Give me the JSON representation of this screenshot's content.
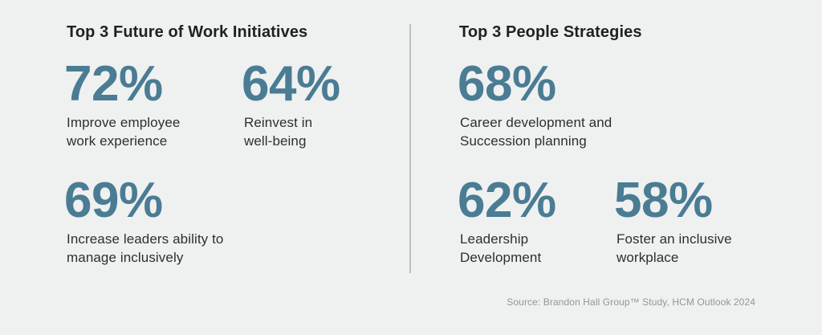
{
  "theme": {
    "background": "#eff0f0",
    "accent": "#4a7c93",
    "heading_color": "#1e2122",
    "label_color": "#2c2f30",
    "divider_color": "#b7c0c4",
    "source_color": "#8f989c"
  },
  "left_section": {
    "title": "Top 3 Future of Work Initiatives",
    "stats": [
      {
        "value": "72%",
        "lines": [
          "Improve employee",
          "work experience"
        ]
      },
      {
        "value": "64%",
        "lines": [
          "Reinvest in",
          "well-being"
        ]
      },
      {
        "value": "69%",
        "lines": [
          "Increase leaders ability to",
          "manage inclusively"
        ]
      }
    ]
  },
  "right_section": {
    "title": "Top 3 People Strategies",
    "stats": [
      {
        "value": "68%",
        "lines": [
          "Career development and",
          "Succession planning"
        ]
      },
      {
        "value": "62%",
        "lines": [
          "Leadership",
          "Development"
        ]
      },
      {
        "value": "58%",
        "lines": [
          "Foster an inclusive",
          "workplace"
        ]
      }
    ]
  },
  "footer": {
    "source": "Source: Brandon Hall Group™ Study, HCM Outlook 2024"
  },
  "chart_data": {
    "type": "table",
    "title": "",
    "series": [
      {
        "name": "Top 3 Future of Work Initiatives",
        "categories": [
          "Improve employee work experience",
          "Reinvest in well-being",
          "Increase leaders ability to manage inclusively"
        ],
        "values": [
          72,
          64,
          69
        ],
        "unit": "%"
      },
      {
        "name": "Top 3 People Strategies",
        "categories": [
          "Career development and Succession planning",
          "Leadership Development",
          "Foster an inclusive workplace"
        ],
        "values": [
          68,
          62,
          58
        ],
        "unit": "%"
      }
    ],
    "source": "Source: Brandon Hall Group™ Study, HCM Outlook 2024",
    "layout": "two-column infographic, big-number stats, vertical divider between columns"
  }
}
